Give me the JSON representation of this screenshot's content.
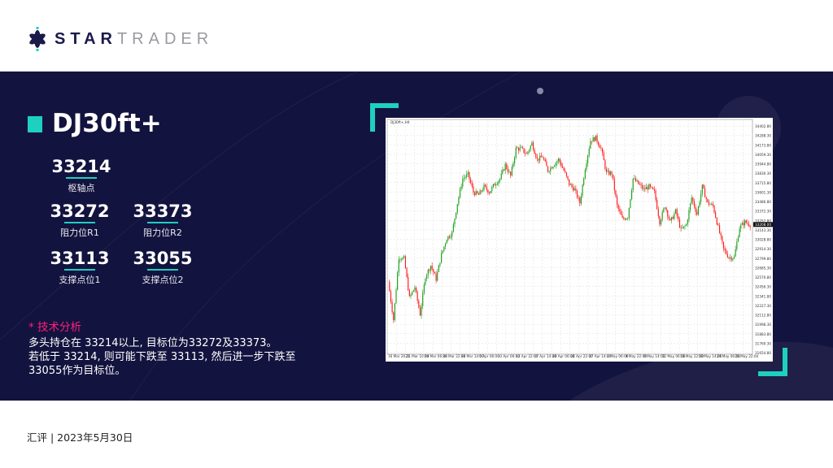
{
  "brand": {
    "bold": "STAR",
    "thin": "TRADER"
  },
  "symbol": "DJ30ft+",
  "levels": [
    {
      "value": "33214",
      "label": "枢轴点"
    },
    {
      "value": "33272",
      "label": "阻力位R1"
    },
    {
      "value": "33373",
      "label": "阻力位R2"
    },
    {
      "value": "33113",
      "label": "支撑点位1"
    },
    {
      "value": "33055",
      "label": "支撑点位2"
    }
  ],
  "analysis": {
    "heading": "* 技术分析",
    "lines": [
      "多头持仓在 33214以上, 目标位为33272及33373。",
      "若低于 33214, 则可能下跌至 33113, 然后进一步下跌至",
      "33055作为目标位。"
    ]
  },
  "footer": "汇评 | 2023年5月30日",
  "colors": {
    "accent": "#1ed0c0",
    "navy": "#13133f",
    "pink": "#ff1f7a",
    "up": "#1a9e1a",
    "down": "#ff1a1a"
  },
  "chart_data": {
    "type": "candlestick",
    "header": "DJ30ft+,H4",
    "current_price": "33208.00",
    "y_ticks": [
      "34402.80",
      "34288.30",
      "34173.80",
      "34059.30",
      "33944.80",
      "33830.30",
      "33715.80",
      "33601.30",
      "33486.80",
      "33372.30",
      "33257.80",
      "33143.30",
      "33028.80",
      "32914.30",
      "32799.80",
      "32685.30",
      "32570.80",
      "32456.30",
      "32341.80",
      "32227.30",
      "32112.80",
      "31998.30",
      "31883.80",
      "31769.30",
      "31654.80"
    ],
    "x_ticks": [
      "16 Mar 2023",
      "21 Mar 10:00",
      "24 Mar 06:00",
      "28 Mar 22:00",
      "31 Mar 14:00",
      "5 Apr 06:00",
      "10 Apr 06:00",
      "12 Apr 22:00",
      "17 Apr 14:00",
      "20 Apr 06:00",
      "24 Apr 22:00",
      "27 Apr 14:00",
      "2 May 06:00",
      "4 May 22:00",
      "9 May 14:00",
      "12 May 06:00",
      "16 May 22:00",
      "19 May 14:00",
      "24 May 06:00",
      "26 May 22:00"
    ],
    "ylim": [
      31654.8,
      34402.8
    ],
    "grid": true,
    "closes": [
      32515,
      32054,
      32810,
      32794,
      32317,
      32449,
      32120,
      32580,
      32712,
      32547,
      32843,
      33041,
      33106,
      33468,
      33764,
      33814,
      33600,
      33567,
      33666,
      33600,
      33699,
      33764,
      33929,
      33797,
      34126,
      34126,
      34061,
      34192,
      33995,
      34028,
      33863,
      33929,
      33995,
      33863,
      33699,
      33633,
      33468,
      33896,
      34225,
      34258,
      34126,
      33830,
      33830,
      33435,
      33271,
      33304,
      33764,
      33699,
      33633,
      33666,
      33600,
      33238,
      33435,
      33238,
      33369,
      33139,
      33205,
      33534,
      33336,
      33666,
      33468,
      33435,
      33172,
      32909,
      32810,
      32810,
      33172,
      33238,
      33205
    ]
  }
}
